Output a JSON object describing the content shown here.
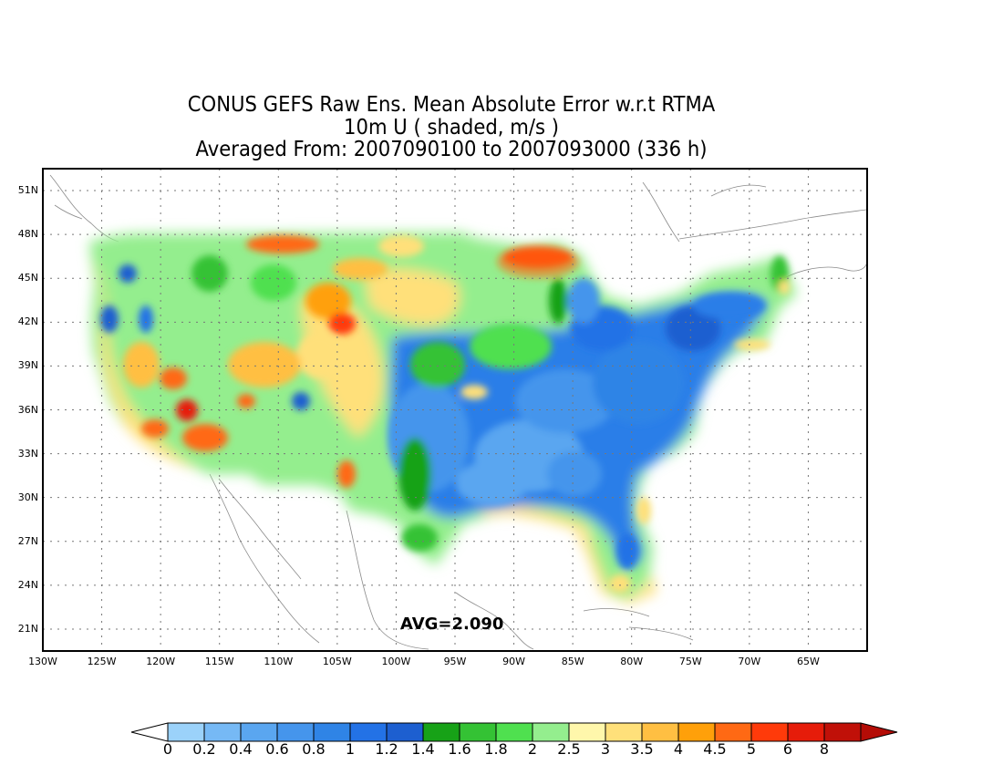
{
  "title": {
    "line1": "CONUS GEFS Raw Ens. Mean Absolute Error w.r.t RTMA",
    "line2": "10m U ( shaded, m/s )",
    "line3": "Averaged From: 2007090100 to 2007093000 (336 h)"
  },
  "map": {
    "lon_range": [
      -130,
      -60
    ],
    "lat_range": [
      19.5,
      52.5
    ],
    "lat_ticks": [
      "51N",
      "48N",
      "45N",
      "42N",
      "39N",
      "36N",
      "33N",
      "30N",
      "27N",
      "24N",
      "21N"
    ],
    "lon_ticks": [
      "130W",
      "125W",
      "120W",
      "115W",
      "110W",
      "105W",
      "100W",
      "95W",
      "90W",
      "85W",
      "80W",
      "75W",
      "70W",
      "65W"
    ],
    "gridlines": true,
    "avg_text": "AVG=2.090"
  },
  "colorbar": {
    "labels": [
      "0",
      "0.2",
      "0.4",
      "0.6",
      "0.8",
      "1",
      "1.2",
      "1.4",
      "1.6",
      "1.8",
      "2",
      "2.5",
      "3",
      "3.5",
      "4",
      "4.5",
      "5",
      "6",
      "8"
    ],
    "colors": [
      "#9bd2fa",
      "#76b9f5",
      "#5aa6f0",
      "#4595ec",
      "#2f84e6",
      "#2372e6",
      "#1d5fd0",
      "#17a217",
      "#34c234",
      "#4fe04f",
      "#94ee8e",
      "#fff7ab",
      "#ffe07a",
      "#ffbf42",
      "#ffa00a",
      "#ff6914",
      "#ff3a0a",
      "#e61c0a",
      "#c01008"
    ],
    "under_color": "#ffffff",
    "over_color": "#b40c06"
  }
}
